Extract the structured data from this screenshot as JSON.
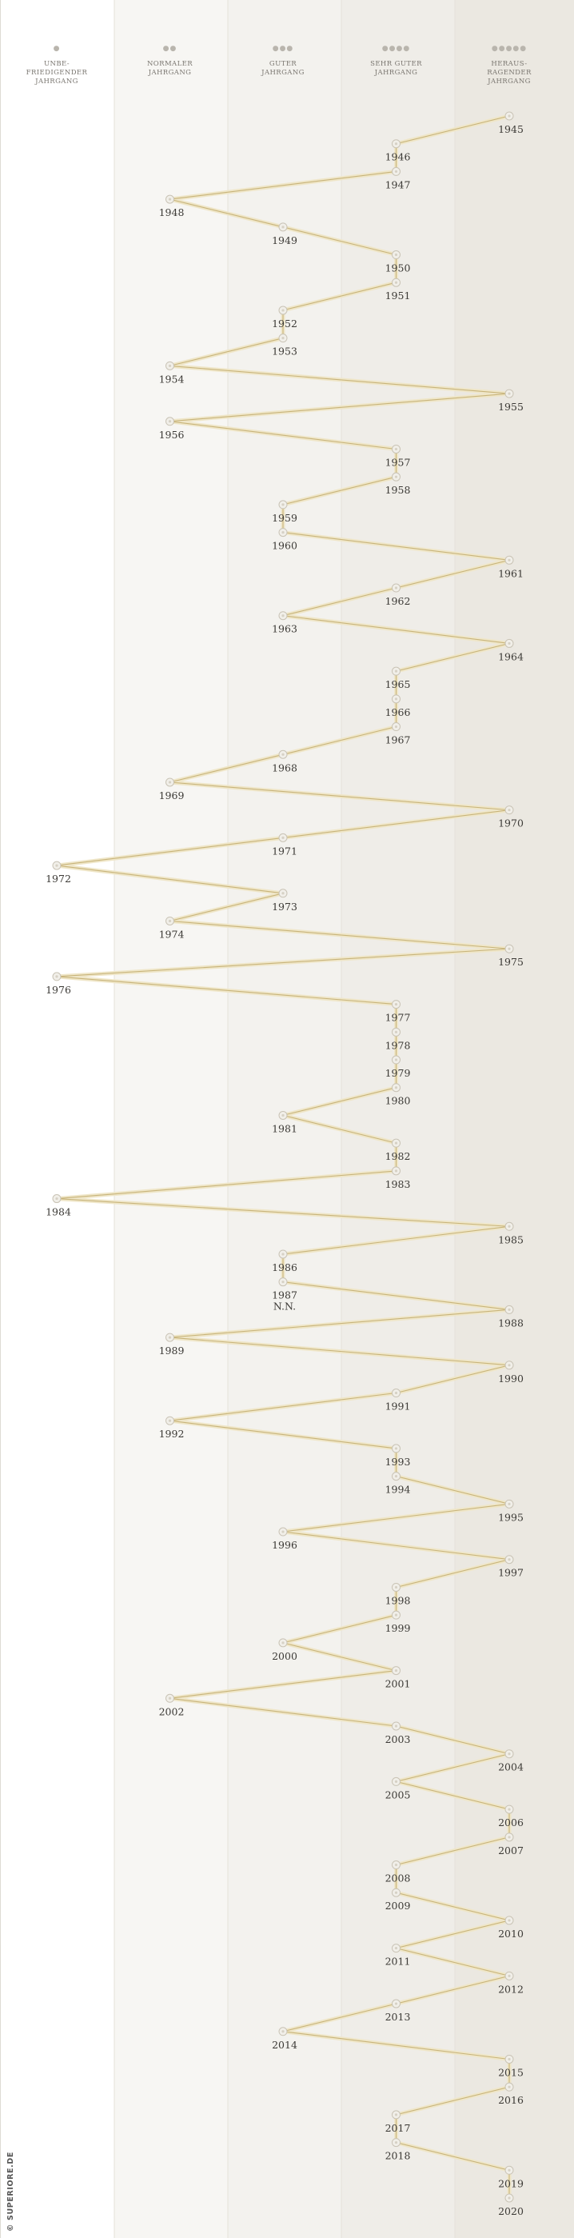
{
  "credit": "© SUPERIORE.DE",
  "chart_data": {
    "type": "line",
    "categories": [
      {
        "rating": 1,
        "dots": "●",
        "label": [
          "UNBE-",
          "FRIEDIGENDER",
          "JAHRGANG"
        ]
      },
      {
        "rating": 2,
        "dots": "●●",
        "label": [
          "NORMALER",
          "JAHRGANG"
        ]
      },
      {
        "rating": 3,
        "dots": "●●●",
        "label": [
          "GUTER",
          "JAHRGANG"
        ]
      },
      {
        "rating": 4,
        "dots": "●●●●",
        "label": [
          "SEHR GUTER",
          "JAHRGANG"
        ]
      },
      {
        "rating": 5,
        "dots": "●●●●●",
        "label": [
          "HERAUS-",
          "RAGENDER",
          "JAHRGANG"
        ]
      }
    ],
    "points": [
      {
        "year": 1945,
        "rating": 5,
        "label": "1945"
      },
      {
        "year": 1946,
        "rating": 4,
        "label": "1946"
      },
      {
        "year": 1947,
        "rating": 4,
        "label": "1947"
      },
      {
        "year": 1948,
        "rating": 2,
        "label": "1948"
      },
      {
        "year": 1949,
        "rating": 3,
        "label": "1949"
      },
      {
        "year": 1950,
        "rating": 4,
        "label": "1950"
      },
      {
        "year": 1951,
        "rating": 4,
        "label": "1951"
      },
      {
        "year": 1952,
        "rating": 3,
        "label": "1952"
      },
      {
        "year": 1953,
        "rating": 3,
        "label": "1953"
      },
      {
        "year": 1954,
        "rating": 2,
        "label": "1954"
      },
      {
        "year": 1955,
        "rating": 5,
        "label": "1955"
      },
      {
        "year": 1956,
        "rating": 2,
        "label": "1956"
      },
      {
        "year": 1957,
        "rating": 4,
        "label": "1957"
      },
      {
        "year": 1958,
        "rating": 4,
        "label": "1958"
      },
      {
        "year": 1959,
        "rating": 3,
        "label": "1959"
      },
      {
        "year": 1960,
        "rating": 3,
        "label": "1960"
      },
      {
        "year": 1961,
        "rating": 5,
        "label": "1961"
      },
      {
        "year": 1962,
        "rating": 4,
        "label": "1962"
      },
      {
        "year": 1963,
        "rating": 3,
        "label": "1963"
      },
      {
        "year": 1964,
        "rating": 5,
        "label": "1964"
      },
      {
        "year": 1965,
        "rating": 4,
        "label": "1965"
      },
      {
        "year": 1966,
        "rating": 4,
        "label": "1966"
      },
      {
        "year": 1967,
        "rating": 4,
        "label": "1967"
      },
      {
        "year": 1968,
        "rating": 3,
        "label": "1968"
      },
      {
        "year": 1969,
        "rating": 2,
        "label": "1969"
      },
      {
        "year": 1970,
        "rating": 5,
        "label": "1970"
      },
      {
        "year": 1971,
        "rating": 3,
        "label": "1971"
      },
      {
        "year": 1972,
        "rating": 1,
        "label": "1972"
      },
      {
        "year": 1973,
        "rating": 3,
        "label": "1973"
      },
      {
        "year": 1974,
        "rating": 2,
        "label": "1974"
      },
      {
        "year": 1975,
        "rating": 5,
        "label": "1975"
      },
      {
        "year": 1976,
        "rating": 1,
        "label": "1976"
      },
      {
        "year": 1977,
        "rating": 4,
        "label": "1977"
      },
      {
        "year": 1978,
        "rating": 4,
        "label": "1978"
      },
      {
        "year": 1979,
        "rating": 4,
        "label": "1979"
      },
      {
        "year": 1980,
        "rating": 4,
        "label": "1980"
      },
      {
        "year": 1981,
        "rating": 3,
        "label": "1981"
      },
      {
        "year": 1982,
        "rating": 4,
        "label": "1982"
      },
      {
        "year": 1983,
        "rating": 4,
        "label": "1983"
      },
      {
        "year": 1984,
        "rating": 1,
        "label": "1984"
      },
      {
        "year": 1985,
        "rating": 5,
        "label": "1985"
      },
      {
        "year": 1986,
        "rating": 3,
        "label": "1986"
      },
      {
        "year": 1987,
        "rating": 3,
        "label": "1987",
        "note": "N.N."
      },
      {
        "year": 1988,
        "rating": 5,
        "label": "1988"
      },
      {
        "year": 1989,
        "rating": 2,
        "label": "1989"
      },
      {
        "year": 1990,
        "rating": 5,
        "label": "1990"
      },
      {
        "year": 1991,
        "rating": 4,
        "label": "1991"
      },
      {
        "year": 1992,
        "rating": 2,
        "label": "1992"
      },
      {
        "year": 1993,
        "rating": 4,
        "label": "1993"
      },
      {
        "year": 1994,
        "rating": 4,
        "label": "1994"
      },
      {
        "year": 1995,
        "rating": 5,
        "label": "1995"
      },
      {
        "year": 1996,
        "rating": 3,
        "label": "1996"
      },
      {
        "year": 1997,
        "rating": 5,
        "label": "1997"
      },
      {
        "year": 1998,
        "rating": 4,
        "label": "1998"
      },
      {
        "year": 1999,
        "rating": 4,
        "label": "1999"
      },
      {
        "year": 2000,
        "rating": 3,
        "label": "2000"
      },
      {
        "year": 2001,
        "rating": 4,
        "label": "2001"
      },
      {
        "year": 2002,
        "rating": 2,
        "label": "2002"
      },
      {
        "year": 2003,
        "rating": 4,
        "label": "2003"
      },
      {
        "year": 2004,
        "rating": 5,
        "label": "2004"
      },
      {
        "year": 2005,
        "rating": 4,
        "label": "2005"
      },
      {
        "year": 2006,
        "rating": 5,
        "label": "2006"
      },
      {
        "year": 2007,
        "rating": 5,
        "label": "2007"
      },
      {
        "year": 2008,
        "rating": 4,
        "label": "2008"
      },
      {
        "year": 2009,
        "rating": 4,
        "label": "2009"
      },
      {
        "year": 2010,
        "rating": 5,
        "label": "2010"
      },
      {
        "year": 2011,
        "rating": 4,
        "label": "2011"
      },
      {
        "year": 2012,
        "rating": 5,
        "label": "2012"
      },
      {
        "year": 2013,
        "rating": 4,
        "label": "2013"
      },
      {
        "year": 2014,
        "rating": 3,
        "label": "2014"
      },
      {
        "year": 2015,
        "rating": 5,
        "label": "2015"
      },
      {
        "year": 2016,
        "rating": 5,
        "label": "2016"
      },
      {
        "year": 2017,
        "rating": 4,
        "label": "2017"
      },
      {
        "year": 2018,
        "rating": 4,
        "label": "2018"
      },
      {
        "year": 2019,
        "rating": 5,
        "label": "2019"
      },
      {
        "year": 2020,
        "rating": 5,
        "label": "2020"
      }
    ],
    "colors": {
      "line": "#c8b47a",
      "line_glow": "#efe6c8",
      "marker": "#c9c3b5",
      "column_backgrounds": [
        "#ffffff",
        "#f7f6f3",
        "#f3f2ee",
        "#efede8",
        "#ebe8e1"
      ]
    },
    "grid": false
  }
}
